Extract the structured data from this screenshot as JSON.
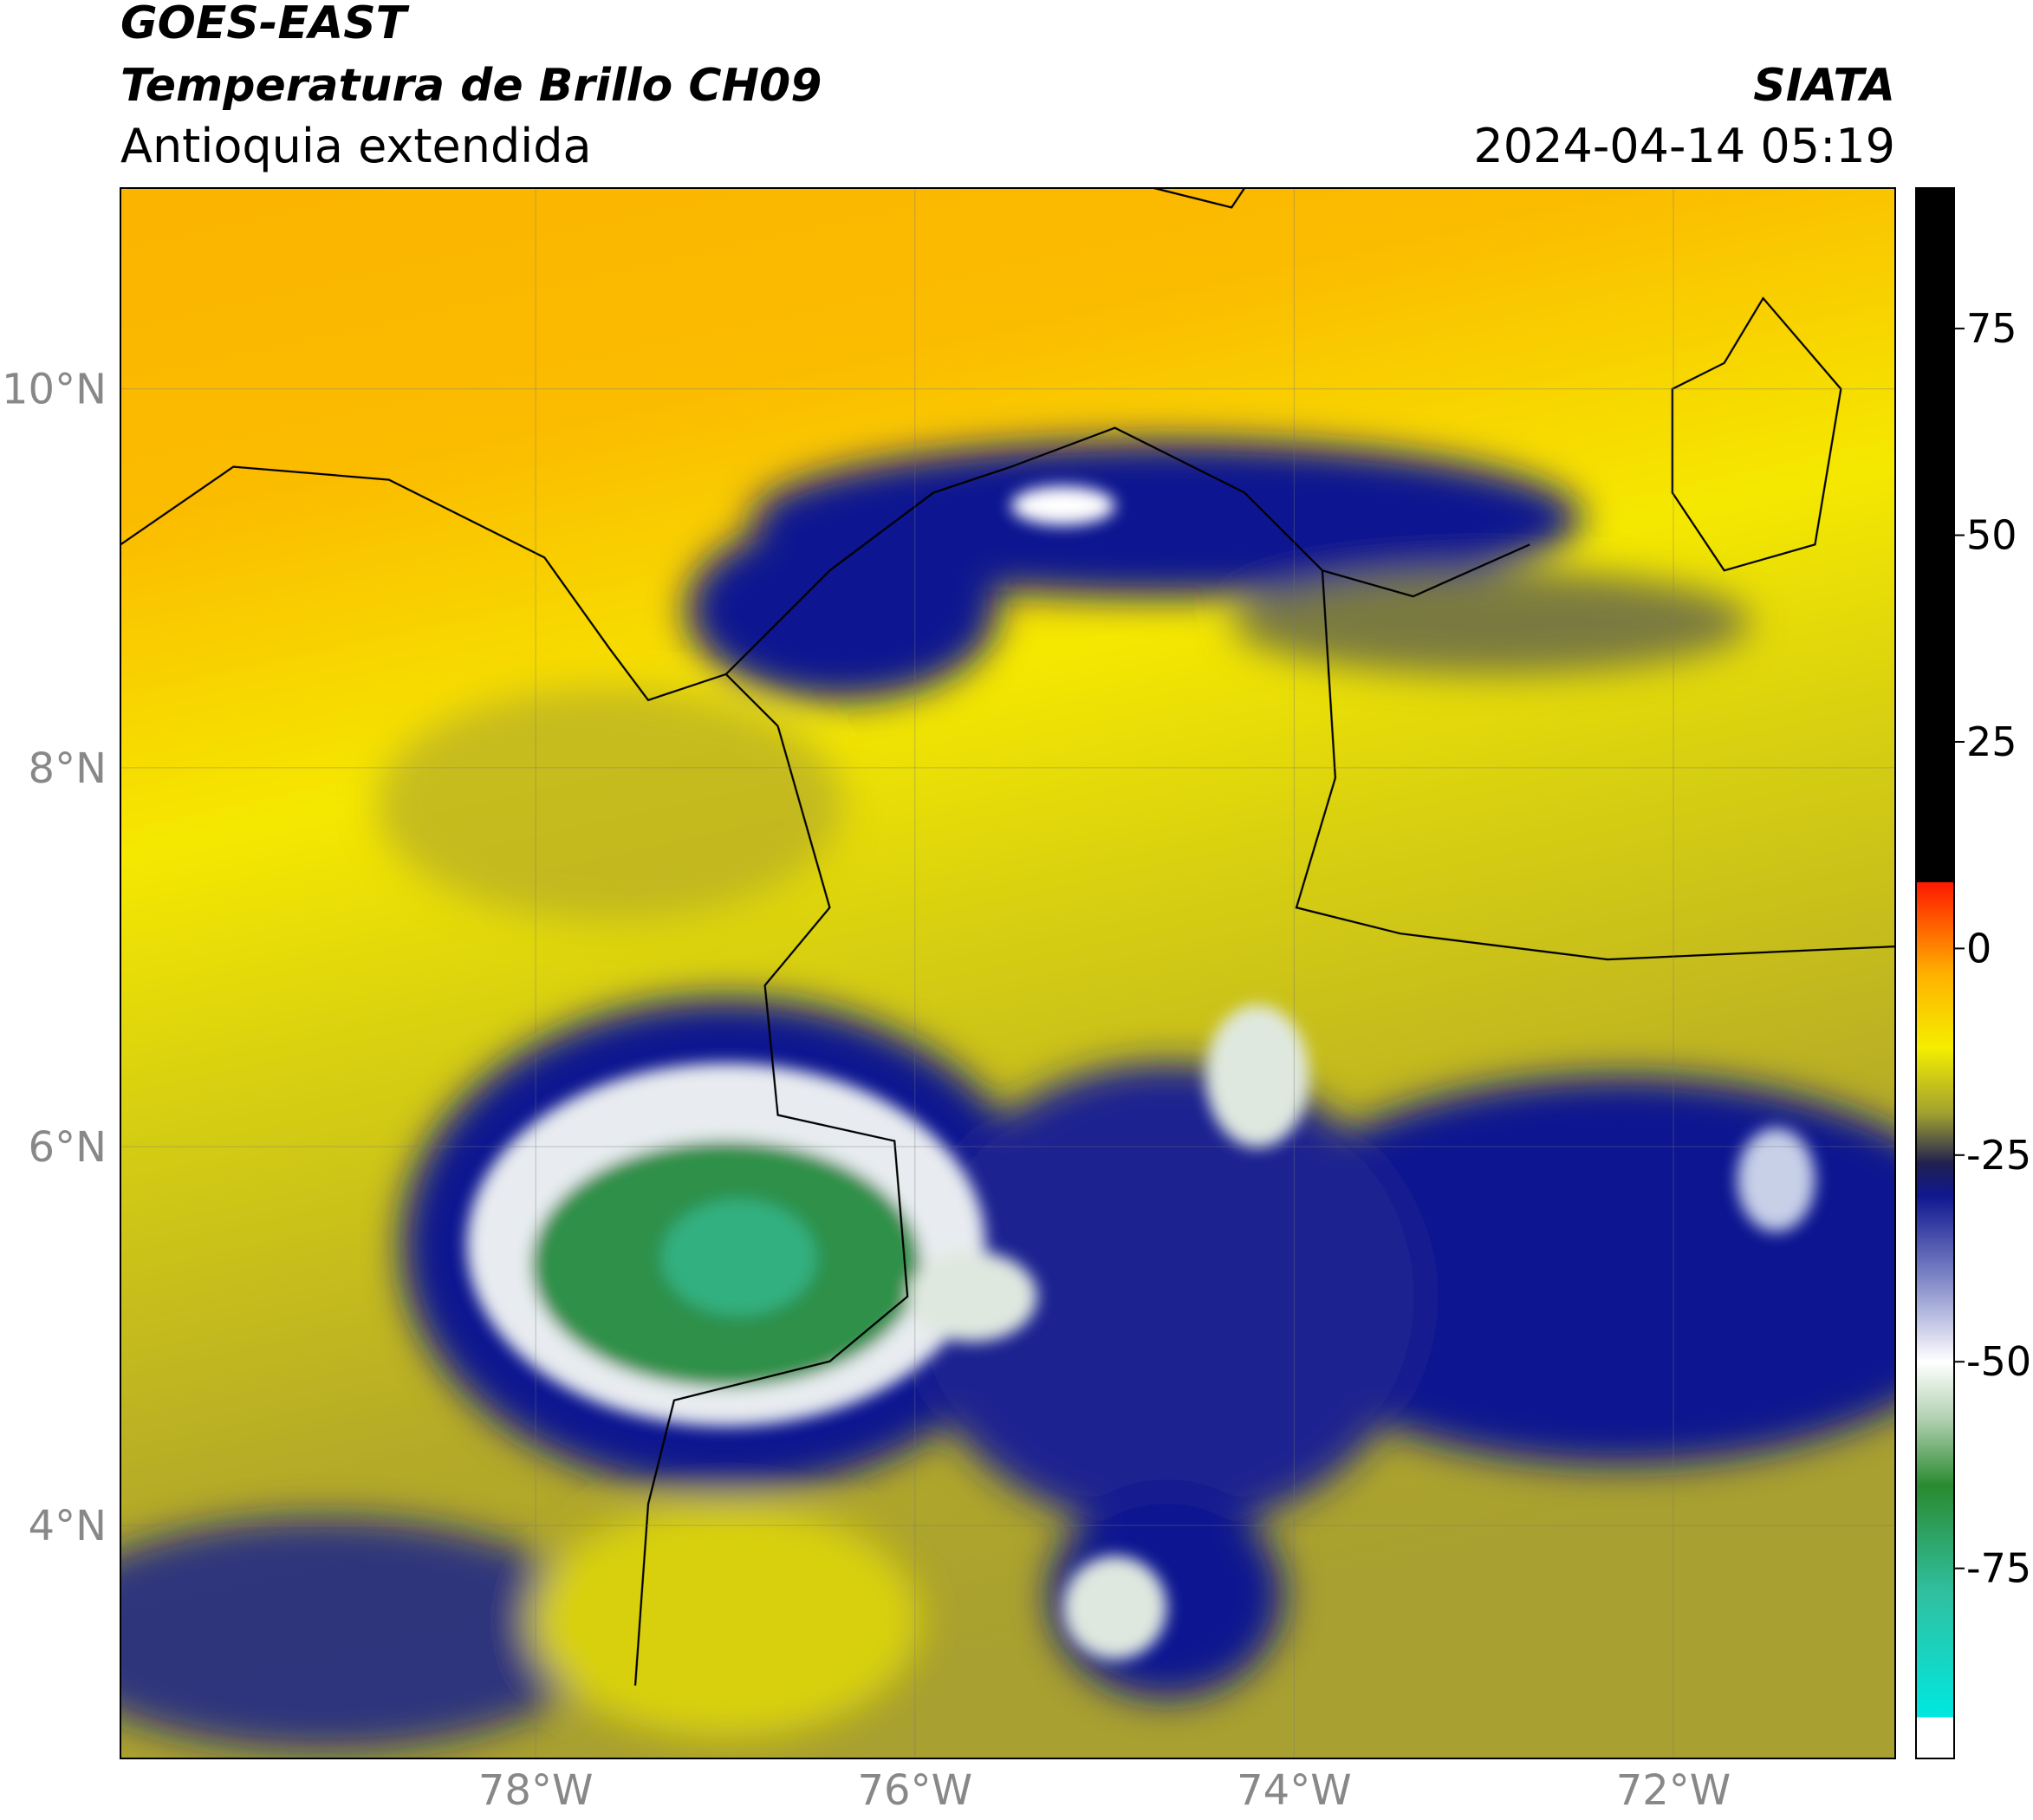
{
  "header": {
    "title": "GOES-EAST",
    "subtitle": "Temperatura de Brillo CH09",
    "region": "Antioquia extendida",
    "source": "SIATA",
    "datetime": "2024-04-14 05:19"
  },
  "map": {
    "lon_range": [
      -80.19,
      -70.83
    ],
    "lat_range": [
      2.77,
      11.06
    ],
    "lon_ticks": [
      {
        "value": -78,
        "label": "78°W"
      },
      {
        "value": -76,
        "label": "76°W"
      },
      {
        "value": -74,
        "label": "74°W"
      },
      {
        "value": -72,
        "label": "72°W"
      }
    ],
    "lat_ticks": [
      {
        "value": 4,
        "label": "4°N"
      },
      {
        "value": 6,
        "label": "6°N"
      },
      {
        "value": 8,
        "label": "8°N"
      },
      {
        "value": 10,
        "label": "10°N"
      }
    ],
    "grid": true
  },
  "colorbar": {
    "range": [
      -98,
      92
    ],
    "ticks": [
      -75,
      -50,
      -25,
      0,
      25,
      50,
      75
    ],
    "stops": [
      {
        "value": -98,
        "color": "#ffffff"
      },
      {
        "value": -93,
        "color": "#ffffff"
      },
      {
        "value": -93,
        "color": "#00e8e0"
      },
      {
        "value": -78,
        "color": "#30c0a0"
      },
      {
        "value": -65,
        "color": "#2a8a30"
      },
      {
        "value": -57,
        "color": "#b0d0b0"
      },
      {
        "value": -50,
        "color": "#ffffff"
      },
      {
        "value": -40,
        "color": "#8088c8"
      },
      {
        "value": -30,
        "color": "#101890"
      },
      {
        "value": -26,
        "color": "#202050"
      },
      {
        "value": -20,
        "color": "#a0a030"
      },
      {
        "value": -12,
        "color": "#f5ee00"
      },
      {
        "value": -3,
        "color": "#ffb000"
      },
      {
        "value": 8,
        "color": "#ff1800"
      },
      {
        "value": 8,
        "color": "#000000"
      },
      {
        "value": 92,
        "color": "#000000"
      }
    ]
  }
}
